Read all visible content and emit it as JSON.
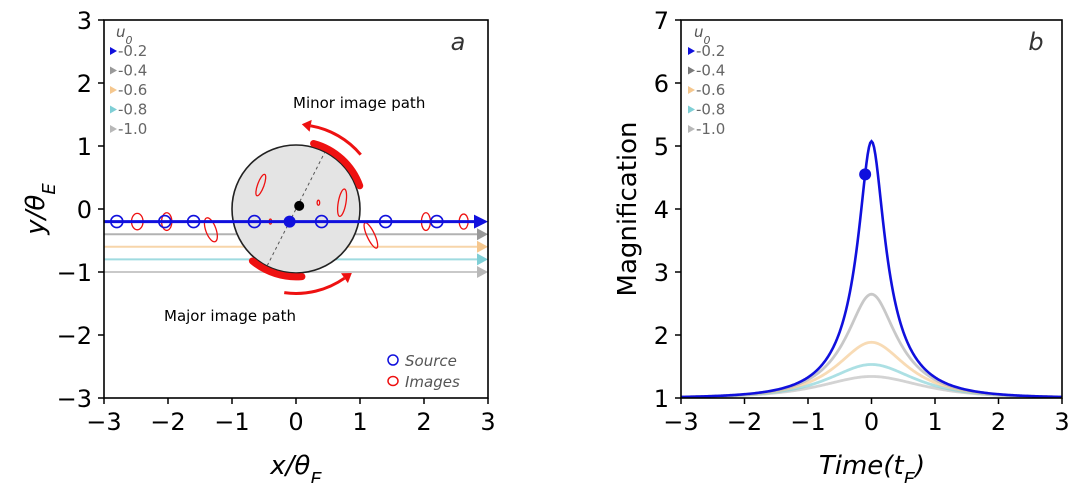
{
  "colors": {
    "traj_main": "#1010dd",
    "traj_04": "#999999",
    "traj_06": "#f5c78e",
    "traj_08": "#7fcfd6",
    "traj_10": "#b8b8b8",
    "images": "#ee1111",
    "lens_fill": "#e4e4e4",
    "arrow": "#ee1111"
  },
  "chart_data": [
    {
      "type": "scatter",
      "panel_label": "a",
      "xlabel": "x/θ_E",
      "ylabel": "y/θ_E",
      "xlim": [
        -3,
        3
      ],
      "ylim": [
        -3,
        3
      ],
      "xticks": [
        -3,
        -2,
        -1,
        0,
        1,
        2,
        3
      ],
      "yticks": [
        -3,
        -2,
        -1,
        0,
        1,
        2,
        3
      ],
      "xtick_labels": [
        "−3",
        "−2",
        "−1",
        "0",
        "1",
        "2",
        "3"
      ],
      "ytick_labels": [
        "−3",
        "−2",
        "−1",
        "0",
        "1",
        "2",
        "3"
      ],
      "legend_title": "u₀",
      "legend_position": "top-left",
      "legend_entries": [
        "-0.2",
        "-0.4",
        "-0.6",
        "-0.8",
        "-1.0"
      ],
      "trajectories": [
        {
          "u0": -0.2,
          "y": -0.2,
          "color": "#1010dd"
        },
        {
          "u0": -0.4,
          "y": -0.4,
          "color": "#999999"
        },
        {
          "u0": -0.6,
          "y": -0.6,
          "color": "#f5c78e"
        },
        {
          "u0": -0.8,
          "y": -0.8,
          "color": "#7fcfd6"
        },
        {
          "u0": -1.0,
          "y": -1.0,
          "color": "#b8b8b8"
        }
      ],
      "einstein_ring": {
        "cx": 0,
        "cy": 0,
        "r": 1
      },
      "lens_point": {
        "x": 0.05,
        "y": 0.05
      },
      "current_source": {
        "x": -0.1,
        "y": -0.2
      },
      "source_positions": [
        -2.8,
        -2.05,
        -1.6,
        -0.65,
        0.4,
        1.4,
        2.2
      ],
      "image_loops": [
        {
          "cx": -2.48,
          "cy": -0.2,
          "rx": 0.09,
          "ry": 0.13,
          "rot": 0
        },
        {
          "cx": -2.02,
          "cy": -0.2,
          "rx": 0.08,
          "ry": 0.14,
          "rot": 0
        },
        {
          "cx": -1.33,
          "cy": -0.33,
          "rx": 0.08,
          "ry": 0.2,
          "rot": -20
        },
        {
          "cx": -0.55,
          "cy": 0.38,
          "rx": 0.05,
          "ry": 0.18,
          "rot": 20
        },
        {
          "cx": 0.72,
          "cy": 0.1,
          "rx": 0.06,
          "ry": 0.22,
          "rot": 10
        },
        {
          "cx": 1.17,
          "cy": -0.42,
          "rx": 0.06,
          "ry": 0.22,
          "rot": -25
        },
        {
          "cx": 2.03,
          "cy": -0.2,
          "rx": 0.07,
          "ry": 0.14,
          "rot": 0
        },
        {
          "cx": 2.62,
          "cy": -0.2,
          "rx": 0.07,
          "ry": 0.12,
          "rot": 0
        },
        {
          "cx": -0.4,
          "cy": -0.2,
          "rx": 0.02,
          "ry": 0.04,
          "rot": 0
        },
        {
          "cx": 0.35,
          "cy": 0.1,
          "rx": 0.02,
          "ry": 0.04,
          "rot": 0
        }
      ],
      "arcs": [
        {
          "name": "minor-image-arc",
          "r": 1.06,
          "a0": 20,
          "a1": 75
        },
        {
          "name": "major-image-arc",
          "r": 1.06,
          "a0": -130,
          "a1": -85
        }
      ],
      "annotations": {
        "minor_label": "Minor image path",
        "major_label": "Major image path"
      },
      "key": {
        "source": "Source",
        "images": "Images"
      }
    },
    {
      "type": "line",
      "panel_label": "b",
      "xlabel": "Time(t_E)",
      "ylabel": "Magnification",
      "xlim": [
        -3,
        3
      ],
      "ylim": [
        1,
        7
      ],
      "xticks": [
        -3,
        -2,
        -1,
        0,
        1,
        2,
        3
      ],
      "yticks": [
        1,
        2,
        3,
        4,
        5,
        6,
        7
      ],
      "xtick_labels": [
        "−3",
        "−2",
        "−1",
        "0",
        "1",
        "2",
        "3"
      ],
      "ytick_labels": [
        "1",
        "2",
        "3",
        "4",
        "5",
        "6",
        "7"
      ],
      "legend_title": "u₀",
      "legend_position": "top-left",
      "legend_entries": [
        "-0.2",
        "-0.4",
        "-0.6",
        "-0.8",
        "-1.0"
      ],
      "series": [
        {
          "name": "-0.2",
          "u0": 0.2,
          "color": "#1010dd",
          "peak": 5.08
        },
        {
          "name": "-0.4",
          "u0": 0.4,
          "color": "#aaaaaa",
          "peak": 2.64
        },
        {
          "name": "-0.6",
          "u0": 0.6,
          "color": "#f5c78e",
          "peak": 1.88
        },
        {
          "name": "-0.8",
          "u0": 0.8,
          "color": "#7fcfd6",
          "peak": 1.53
        },
        {
          "name": "-1.0",
          "u0": 1.0,
          "color": "#bbbbbb",
          "peak": 1.34
        }
      ],
      "marker": {
        "x": -0.1,
        "y": 4.55
      }
    }
  ]
}
